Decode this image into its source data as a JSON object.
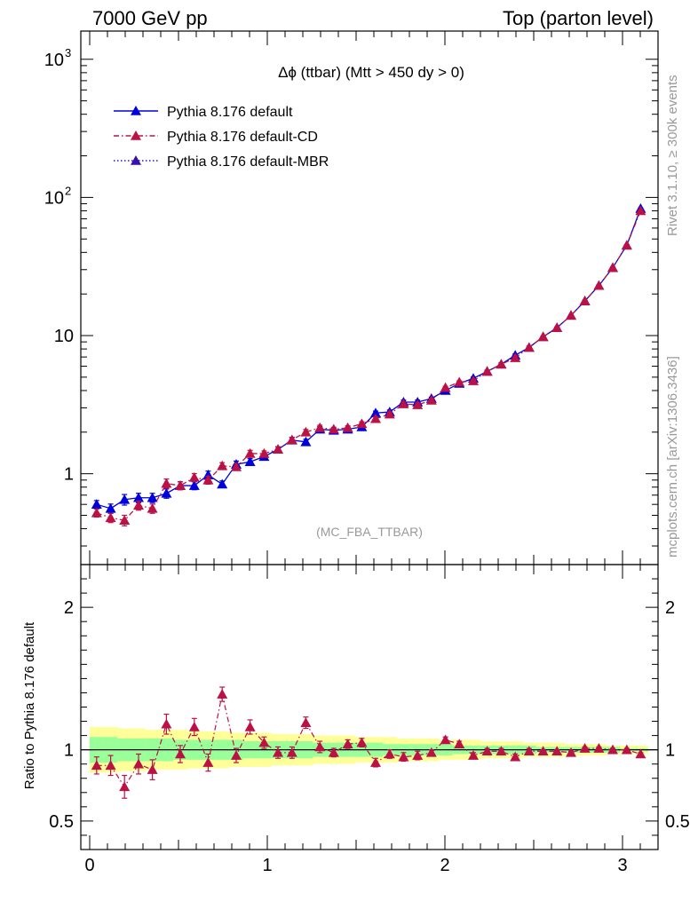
{
  "header": {
    "left": "7000 GeV pp",
    "right": "Top (parton level)"
  },
  "side": {
    "rivet": "Rivet 3.1.10, ≥ 300k events",
    "mcplots": "mcplots.cern.ch [arXiv:1306.3436]"
  },
  "plot": {
    "title_prefix": "Δϕ",
    "title_rest": " (ttbar) (Mtt > 450 dy > 0)",
    "watermark": "(MC_FBA_TTBAR)",
    "ratio_ylabel": "Ratio to Pythia 8.176 default"
  },
  "legend": [
    {
      "label": "Pythia 8.176 default",
      "color": "#0000dd",
      "style": "solid"
    },
    {
      "label": "Pythia 8.176 default-CD",
      "color": "#bb1144",
      "style": "dashdot"
    },
    {
      "label": "Pythia 8.176 default-MBR",
      "color": "#3311aa",
      "style": "dotted"
    }
  ],
  "chart_data": [
    {
      "type": "line",
      "yscale": "log",
      "xlim": [
        -0.05,
        3.2
      ],
      "ylim": [
        0.22,
        1600
      ],
      "yticks": [
        {
          "v": 1,
          "label": "1"
        },
        {
          "v": 10,
          "label": "10"
        },
        {
          "v": 100,
          "label": "10",
          "exp": "2"
        },
        {
          "v": 1000,
          "label": "10",
          "exp": "3"
        }
      ],
      "x": [
        0.039,
        0.118,
        0.196,
        0.275,
        0.353,
        0.432,
        0.51,
        0.589,
        0.667,
        0.746,
        0.825,
        0.903,
        0.982,
        1.06,
        1.139,
        1.217,
        1.296,
        1.374,
        1.453,
        1.532,
        1.61,
        1.689,
        1.767,
        1.846,
        1.924,
        2.003,
        2.081,
        2.16,
        2.238,
        2.317,
        2.396,
        2.474,
        2.553,
        2.631,
        2.71,
        2.788,
        2.867,
        2.945,
        3.024,
        3.102
      ],
      "series": [
        {
          "name": "Pythia 8.176 default",
          "values": [
            0.6,
            0.56,
            0.65,
            0.67,
            0.67,
            0.72,
            0.82,
            0.82,
            0.98,
            0.84,
            1.17,
            1.22,
            1.33,
            1.5,
            1.75,
            1.7,
            2.1,
            2.06,
            2.1,
            2.18,
            2.75,
            2.8,
            3.3,
            3.3,
            3.5,
            4.0,
            4.5,
            4.9,
            5.5,
            6.2,
            7.2,
            8.2,
            9.8,
            11.4,
            14,
            17.8,
            23,
            31,
            45,
            83
          ]
        },
        {
          "name": "Pythia 8.176 default-CD",
          "values": [
            0.52,
            0.48,
            0.46,
            0.59,
            0.56,
            0.85,
            0.82,
            0.94,
            0.9,
            1.14,
            1.12,
            1.4,
            1.4,
            1.5,
            1.76,
            2.0,
            2.15,
            2.1,
            2.15,
            2.3,
            2.5,
            2.7,
            3.2,
            3.15,
            3.4,
            4.2,
            4.6,
            4.7,
            5.5,
            6.2,
            6.9,
            8.2,
            9.8,
            11.4,
            14,
            17.8,
            23,
            31,
            45,
            80
          ]
        }
      ]
    },
    {
      "type": "line",
      "ylim": [
        0.3,
        2.3
      ],
      "yticks": [
        {
          "v": 0.5,
          "label": "0.5"
        },
        {
          "v": 1,
          "label": "1"
        },
        {
          "v": 2,
          "label": "2"
        }
      ],
      "xticks": [
        {
          "v": 0,
          "label": "0"
        },
        {
          "v": 1,
          "label": "1"
        },
        {
          "v": 2,
          "label": "2"
        },
        {
          "v": 3,
          "label": "3"
        }
      ],
      "ratio": [
        0.89,
        0.89,
        0.74,
        0.9,
        0.86,
        1.18,
        0.97,
        1.16,
        0.91,
        1.39,
        0.96,
        1.16,
        1.05,
        0.98,
        0.98,
        1.19,
        1.02,
        0.98,
        1.04,
        1.05,
        0.91,
        0.97,
        0.95,
        0.96,
        0.98,
        1.07,
        1.04,
        0.96,
        0.99,
        0.99,
        0.95,
        0.99,
        0.99,
        0.99,
        0.98,
        1.01,
        1.01,
        1.0,
        1.0,
        0.97
      ],
      "ratio_err": [
        0.06,
        0.07,
        0.08,
        0.07,
        0.07,
        0.07,
        0.06,
        0.06,
        0.06,
        0.05,
        0.05,
        0.05,
        0.04,
        0.04,
        0.04,
        0.04,
        0.04,
        0.03,
        0.03,
        0.03,
        0.03,
        0.03,
        0.03,
        0.03,
        0.02,
        0.02,
        0.02,
        0.02,
        0.02,
        0.02,
        0.02,
        0.02,
        0.01,
        0.01,
        0.01,
        0.01,
        0.01,
        0.01,
        0.01,
        0.01
      ],
      "band_yellow": [
        0.16,
        0.16,
        0.15,
        0.15,
        0.14,
        0.14,
        0.14,
        0.13,
        0.13,
        0.13,
        0.12,
        0.12,
        0.12,
        0.11,
        0.11,
        0.11,
        0.1,
        0.1,
        0.1,
        0.09,
        0.09,
        0.09,
        0.08,
        0.08,
        0.08,
        0.07,
        0.07,
        0.07,
        0.06,
        0.06,
        0.06,
        0.05,
        0.05,
        0.05,
        0.04,
        0.04,
        0.04,
        0.03,
        0.03,
        0.03
      ],
      "band_green": [
        0.09,
        0.09,
        0.08,
        0.08,
        0.08,
        0.08,
        0.07,
        0.07,
        0.07,
        0.07,
        0.07,
        0.06,
        0.06,
        0.06,
        0.06,
        0.06,
        0.05,
        0.05,
        0.05,
        0.05,
        0.05,
        0.04,
        0.04,
        0.04,
        0.04,
        0.04,
        0.03,
        0.03,
        0.03,
        0.03,
        0.03,
        0.03,
        0.02,
        0.02,
        0.02,
        0.02,
        0.02,
        0.02,
        0.01,
        0.01
      ]
    }
  ]
}
